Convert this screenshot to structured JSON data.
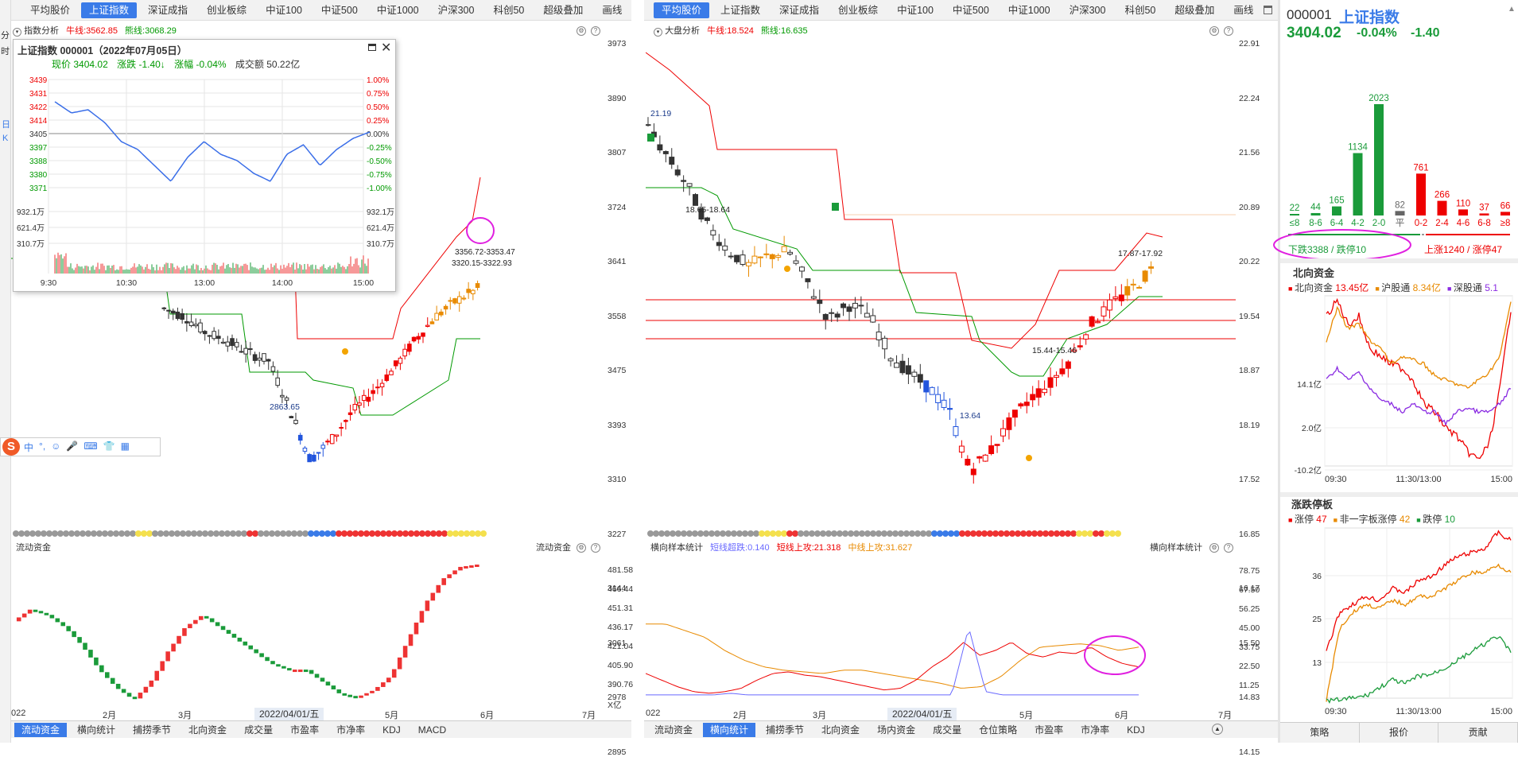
{
  "left_tabs": [
    "平均股价",
    "上证指数",
    "深证成指",
    "创业板综",
    "中证100",
    "中证500",
    "中证1000",
    "沪深300",
    "科创50",
    "超级叠加",
    "画线"
  ],
  "left_active": 1,
  "right_tabs": [
    "平均股价",
    "上证指数",
    "深证成指",
    "创业板综",
    "中证100",
    "中证500",
    "中证1000",
    "沪深300",
    "科创50",
    "超级叠加",
    "画线"
  ],
  "right_active": 0,
  "side_labels": [
    "分",
    "时",
    "日",
    "K"
  ],
  "left_header": {
    "name": "指数分析",
    "bull": "牛线:3562.85",
    "bear": "熊线:3068.29"
  },
  "right_header": {
    "name": "大盘分析",
    "bull": "牛线:18.524",
    "bear": "熊线:16.635"
  },
  "popup": {
    "title": "上证指数 000001（2022年07月05日）",
    "price_label": "现价",
    "price": "3404.02",
    "change_label": "涨跌",
    "change": "-1.40↓",
    "pct_label": "涨幅",
    "pct": "-0.04%",
    "amount_label": "成交额",
    "amount": "50.22亿",
    "left_axis": [
      "3439",
      "3431",
      "3422",
      "3414",
      "3405",
      "3397",
      "3388",
      "3380",
      "3371"
    ],
    "right_axis": [
      "1.00%",
      "0.75%",
      "0.50%",
      "0.25%",
      "0.00%",
      "-0.25%",
      "-0.50%",
      "-0.75%",
      "-1.00%"
    ],
    "vol_axis": [
      "932.1万",
      "621.4万",
      "310.7万"
    ],
    "times": [
      "9:30",
      "10:30",
      "13:00",
      "14:00",
      "15:00"
    ]
  },
  "left_price_axis": [
    "3973",
    "3890",
    "3807",
    "3724",
    "3641",
    "3558",
    "3475",
    "3393",
    "3310",
    "3227",
    "3144",
    "3061",
    "2978",
    "2895"
  ],
  "left_annotations": {
    "low": "2863.65",
    "range1": "3356.72-3353.47",
    "range2": "3320.15-3322.93"
  },
  "right_price_axis": [
    "22.91",
    "22.24",
    "21.56",
    "20.89",
    "20.22",
    "19.54",
    "18.87",
    "18.19",
    "17.52",
    "16.85",
    "16.17",
    "15.50",
    "14.83",
    "14.15"
  ],
  "right_annotations": {
    "start": "21.19",
    "mid": "18.65-18.64",
    "range": "17.87-17.92",
    "low": "13.64",
    "range2": "15.44-15.46"
  },
  "left_lower": {
    "title": "流动资金",
    "title_r": "流动资金",
    "axis": [
      "481.58",
      "466.44",
      "451.31",
      "436.17",
      "421.04",
      "405.90",
      "390.76",
      "X亿"
    ]
  },
  "right_lower": {
    "title": "横向样本统计",
    "s1": "短线超跌:0.140",
    "s2": "短线上攻:21.318",
    "s3": "中线上攻:31.627",
    "title_r": "横向样本统计",
    "axis": [
      "78.75",
      "67.50",
      "56.25",
      "45.00",
      "33.75",
      "22.50",
      "11.25"
    ]
  },
  "left_months": [
    "022",
    "2月",
    "3月",
    "4月",
    "5月",
    "6月",
    "7月"
  ],
  "left_date_tag": "2022/04/01/五",
  "right_months": [
    "022",
    "2月",
    "3月",
    "4月",
    "5月",
    "6月",
    "7月"
  ],
  "right_date_tag": "2022/04/01/五",
  "left_bottom_tabs": [
    "流动资金",
    "横向统计",
    "捕捞季节",
    "北向资金",
    "成交量",
    "市盈率",
    "市净率",
    "KDJ",
    "MACD"
  ],
  "right_bottom_tabs": [
    "流动资金",
    "横向统计",
    "捕捞季节",
    "北向资金",
    "场内资金",
    "成交量",
    "仓位策略",
    "市盈率",
    "市净率",
    "KDJ"
  ],
  "ime": [
    "中",
    "°,",
    "☺",
    "🎤",
    "⌨",
    "👕",
    "▦"
  ],
  "right_panel": {
    "code": "000001",
    "name": "上证指数",
    "price": "3404.02",
    "pct": "-0.04%",
    "change": "-1.40",
    "dist": [
      {
        "label": "≤8",
        "value": "22",
        "color": "#1a9b3a",
        "h": 22
      },
      {
        "label": "8-6",
        "value": "44",
        "color": "#1a9b3a",
        "h": 44
      },
      {
        "label": "6-4",
        "value": "165",
        "color": "#1a9b3a",
        "h": 165
      },
      {
        "label": "4-2",
        "value": "1134",
        "color": "#1a9b3a",
        "h": 1134
      },
      {
        "label": "2-0",
        "value": "2023",
        "color": "#1a9b3a",
        "h": 2023
      },
      {
        "label": "平",
        "value": "82",
        "color": "#666",
        "h": 82
      },
      {
        "label": "0-2",
        "value": "761",
        "color": "#e00",
        "h": 761
      },
      {
        "label": "2-4",
        "value": "266",
        "color": "#e00",
        "h": 266
      },
      {
        "label": "4-6",
        "value": "110",
        "color": "#e00",
        "h": 110
      },
      {
        "label": "6-8",
        "value": "37",
        "color": "#e00",
        "h": 37
      },
      {
        "label": "≥8",
        "value": "66",
        "color": "#e00",
        "h": 66
      }
    ],
    "down_text": "下跌3388 / 跌停10",
    "up_text": "上涨1240 / 涨停47",
    "north_title": "北向资金",
    "north_legend": [
      {
        "name": "北向资金",
        "value": "13.45亿",
        "color": "#e00"
      },
      {
        "name": "沪股通",
        "value": "8.34亿",
        "color": "#e88a00"
      },
      {
        "name": "深股通",
        "value": "5.1",
        "color": "#8a2be2"
      }
    ],
    "north_axis": [
      "14.1亿",
      "2.0亿",
      "-10.2亿"
    ],
    "north_times": [
      "09:30",
      "11:30/13:00",
      "15:00"
    ],
    "limit_title": "涨跌停板",
    "limit_legend": [
      {
        "name": "涨停",
        "value": "47",
        "color": "#e00"
      },
      {
        "name": "非一字板涨停",
        "value": "42",
        "color": "#e88a00"
      },
      {
        "name": "跌停",
        "value": "10",
        "color": "#1a9b3a"
      }
    ],
    "limit_axis": [
      "36",
      "25",
      "13"
    ],
    "limit_times": [
      "09:30",
      "11:30/13:00",
      "15:00"
    ],
    "bottom_tabs": [
      "策略",
      "报价",
      "贡献"
    ]
  }
}
